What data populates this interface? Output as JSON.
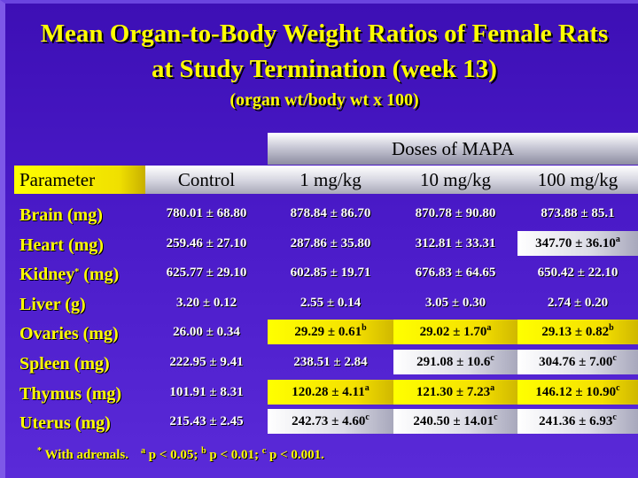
{
  "title_line1": "Mean Organ-to-Body Weight Ratios of Female Rats",
  "title_line2": "at Study Termination (week 13)",
  "subtitle": "(organ wt/body wt x 100)",
  "doses_header": "Doses of MAPA",
  "columns": [
    "Parameter",
    "Control",
    "1 mg/kg",
    "10 mg/kg",
    "100 mg/kg"
  ],
  "rows": [
    {
      "label": "Brain (mg)",
      "label_sup": "",
      "cells": [
        {
          "v": "780.01 ± 68.80",
          "sup": "",
          "hl": ""
        },
        {
          "v": "878.84 ± 86.70",
          "sup": "",
          "hl": ""
        },
        {
          "v": "870.78 ± 90.80",
          "sup": "",
          "hl": ""
        },
        {
          "v": "873.88 ± 85.1",
          "sup": "",
          "hl": ""
        }
      ]
    },
    {
      "label": "Heart (mg)",
      "label_sup": "",
      "cells": [
        {
          "v": "259.46 ± 27.10",
          "sup": "",
          "hl": ""
        },
        {
          "v": "287.86 ± 35.80",
          "sup": "",
          "hl": ""
        },
        {
          "v": "312.81 ± 33.31",
          "sup": "",
          "hl": ""
        },
        {
          "v": "347.70 ± 36.10",
          "sup": "a",
          "hl": "white"
        }
      ]
    },
    {
      "label": "Kidney",
      "label_sup": "*",
      "label_after": " (mg)",
      "cells": [
        {
          "v": "625.77 ± 29.10",
          "sup": "",
          "hl": ""
        },
        {
          "v": "602.85 ± 19.71",
          "sup": "",
          "hl": ""
        },
        {
          "v": "676.83 ± 64.65",
          "sup": "",
          "hl": ""
        },
        {
          "v": "650.42 ± 22.10",
          "sup": "",
          "hl": ""
        }
      ]
    },
    {
      "label": "Liver (g)",
      "label_sup": "",
      "cells": [
        {
          "v": "3.20 ± 0.12",
          "sup": "",
          "hl": ""
        },
        {
          "v": "2.55 ± 0.14",
          "sup": "",
          "hl": ""
        },
        {
          "v": "3.05 ± 0.30",
          "sup": "",
          "hl": ""
        },
        {
          "v": "2.74 ± 0.20",
          "sup": "",
          "hl": ""
        }
      ]
    },
    {
      "label": "Ovaries (mg)",
      "label_sup": "",
      "cells": [
        {
          "v": "26.00 ± 0.34",
          "sup": "",
          "hl": ""
        },
        {
          "v": "29.29 ± 0.61",
          "sup": "b",
          "hl": "yellow"
        },
        {
          "v": "29.02 ± 1.70",
          "sup": "a",
          "hl": "yellow"
        },
        {
          "v": "29.13 ± 0.82",
          "sup": "b",
          "hl": "yellow"
        }
      ]
    },
    {
      "label": "Spleen (mg)",
      "label_sup": "",
      "cells": [
        {
          "v": "222.95 ± 9.41",
          "sup": "",
          "hl": ""
        },
        {
          "v": "238.51 ± 2.84",
          "sup": "",
          "hl": ""
        },
        {
          "v": "291.08 ± 10.6",
          "sup": "c",
          "hl": "white"
        },
        {
          "v": "304.76 ± 7.00",
          "sup": "c",
          "hl": "white"
        }
      ]
    },
    {
      "label": "Thymus (mg)",
      "label_sup": "",
      "cells": [
        {
          "v": "101.91 ± 8.31",
          "sup": "",
          "hl": ""
        },
        {
          "v": "120.28 ± 4.11",
          "sup": "a",
          "hl": "yellow"
        },
        {
          "v": "121.30 ± 7.23",
          "sup": "a",
          "hl": "yellow"
        },
        {
          "v": "146.12 ± 10.90",
          "sup": "c",
          "hl": "yellow"
        }
      ]
    },
    {
      "label": "Uterus (mg)",
      "label_sup": "",
      "cells": [
        {
          "v": "215.43 ± 2.45",
          "sup": "",
          "hl": ""
        },
        {
          "v": "242.73 ± 4.60",
          "sup": "c",
          "hl": "white"
        },
        {
          "v": "240.50 ± 14.01",
          "sup": "c",
          "hl": "white"
        },
        {
          "v": "241.36 ± 6.93",
          "sup": "c",
          "hl": "white"
        }
      ]
    }
  ],
  "footnote": {
    "star": "*",
    "adrenals": "With adrenals.",
    "a_mark": "a",
    "a_text": "p < 0.05;",
    "b_mark": "b",
    "b_text": "p < 0.01;",
    "c_mark": "c",
    "c_text": "p < 0.001."
  },
  "colors": {
    "background": "#4a18c0",
    "title": "#ffff00",
    "highlight_yellow": "#ffff00",
    "highlight_white": "#ffffff"
  }
}
